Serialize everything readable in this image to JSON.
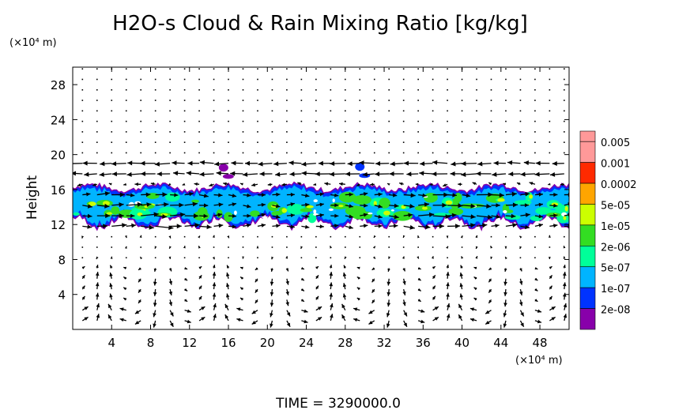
{
  "chart_data": {
    "type": "heatmap",
    "title": "H2O-s Cloud & Rain Mixing Ratio [kg/kg]",
    "ylabel": "Height",
    "xunit": "(×10⁴ m)",
    "yunit": "(×10⁴ m)",
    "time_label": "TIME = 3290000.0",
    "xlim": [
      0,
      51
    ],
    "ylim": [
      0,
      30
    ],
    "xticks": [
      4,
      8,
      12,
      16,
      20,
      24,
      28,
      32,
      36,
      40,
      44,
      48
    ],
    "yticks": [
      4,
      8,
      12,
      16,
      20,
      24,
      28
    ],
    "colorbar": {
      "labels": [
        "0.005",
        "0.001",
        "0.0002",
        "5e-05",
        "1e-05",
        "2e-06",
        "5e-07",
        "1e-07",
        "2e-08"
      ],
      "colors": [
        "#ff9999",
        "#ff2a00",
        "#ffa500",
        "#ccff00",
        "#33dd22",
        "#00ff99",
        "#00b4ff",
        "#0033ff",
        "#8800aa"
      ],
      "top_color": "#ff9999"
    },
    "cloud_band": {
      "bottom_km": 11.8,
      "top_km": 16.2,
      "upper_patches": [
        {
          "x": 15.5,
          "y": 18.5,
          "color": "#8800aa"
        },
        {
          "x": 29.5,
          "y": 18.6,
          "color": "#0033ff"
        }
      ]
    },
    "wind_vectors": "dense arrow field; strong westward flow near 18-19 km, eastward within cloud band 12-16 km, circulation cells below 8 km"
  }
}
